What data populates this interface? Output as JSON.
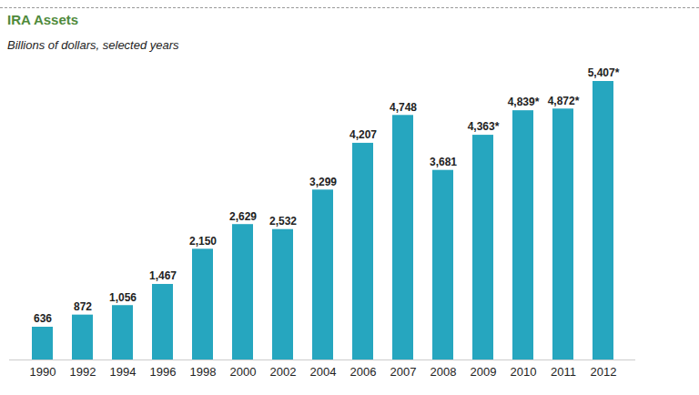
{
  "chart_data": {
    "type": "bar",
    "title": "IRA Assets",
    "subtitle": "Billions of dollars, selected years",
    "categories": [
      "1990",
      "1992",
      "1994",
      "1996",
      "1998",
      "2000",
      "2002",
      "2004",
      "2006",
      "2007",
      "2008",
      "2009",
      "2010",
      "2011",
      "2012"
    ],
    "values": [
      636,
      872,
      1056,
      1467,
      2150,
      2629,
      2532,
      3299,
      4207,
      4748,
      3681,
      4363,
      4839,
      4872,
      5407
    ],
    "value_labels": [
      "636",
      "872",
      "1,056",
      "1,467",
      "2,150",
      "2,629",
      "2,532",
      "3,299",
      "4,207",
      "4,748",
      "3,681",
      "4,363*",
      "4,839*",
      "4,872*",
      "5,407*"
    ],
    "color": "#26a6bf",
    "data_labels": true,
    "tick_labels": "x"
  }
}
